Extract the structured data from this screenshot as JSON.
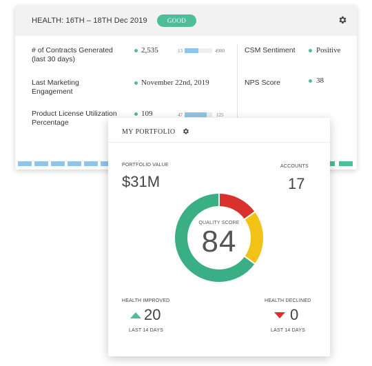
{
  "health": {
    "title": "HEALTH: 16TH – 18TH Dec 2019",
    "badge": "GOOD",
    "badge_color": "#4dbd9a",
    "settings_icon": "gear-icon",
    "metrics": [
      {
        "label": "# of Contracts Generated (last 30 days)",
        "value": "2,535",
        "range_min": "13",
        "range_max": "4980",
        "fill_fraction": 0.51
      },
      {
        "label": "Last Marketing Engagement",
        "value": "November 22nd, 2019"
      },
      {
        "label": "Product License Utilization Percentage",
        "value": "109",
        "range_min": "47",
        "range_max": "125",
        "fill_fraction": 0.79
      }
    ],
    "side_metrics": [
      {
        "label": "CSM Sentiment",
        "value": "Positive"
      },
      {
        "label": "NPS Score",
        "value": "38"
      }
    ],
    "trend_colors": [
      "#8ec6ea",
      "#4dbd9a"
    ]
  },
  "portfolio": {
    "title": "MY PORTFOLIO",
    "settings_icon": "gear-icon",
    "value_label": "PORTFOLIO VALUE",
    "value": "$31M",
    "accounts_label": "ACCOUNTS",
    "accounts": "17",
    "quality_label": "QUALITY SCORE",
    "quality_score": "84",
    "quality_breakdown": [
      {
        "color": "#d9312d",
        "fraction": 0.15
      },
      {
        "color": "#f2c317",
        "fraction": 0.2
      },
      {
        "color": "#3aaf86",
        "fraction": 0.65
      }
    ],
    "improved_label": "HEALTH IMPROVED",
    "improved_value": "20",
    "improved_period": "LAST 14 DAYS",
    "declined_label": "HEALTH DECLINED",
    "declined_value": "0",
    "declined_period": "LAST 14 DAYS"
  }
}
